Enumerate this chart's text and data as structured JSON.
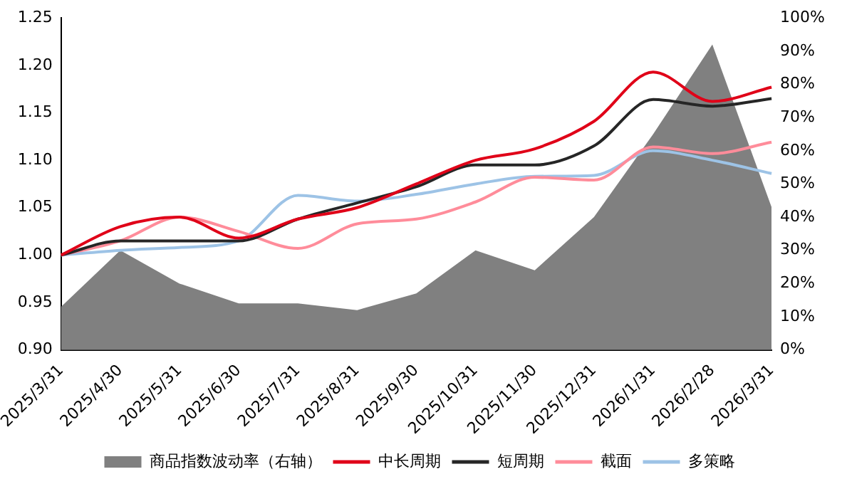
{
  "chart_data": {
    "type": "line",
    "categories": [
      "2025/3/31",
      "2025/4/30",
      "2025/5/31",
      "2025/6/30",
      "2025/7/31",
      "2025/8/31",
      "2025/9/30",
      "2025/10/31",
      "2025/11/30",
      "2025/12/31",
      "2026/1/31",
      "2026/2/28",
      "2026/3/31"
    ],
    "series": [
      {
        "name": "商品指数波动率（右轴）",
        "type": "area",
        "axis": "y2",
        "color": "#808080",
        "values": [
          13,
          30,
          20,
          14,
          14,
          12,
          17,
          30,
          24,
          40,
          65,
          92,
          43
        ]
      },
      {
        "name": "中长周期",
        "color": "#e00018",
        "values": [
          1.0,
          1.03,
          1.04,
          1.018,
          1.038,
          1.05,
          1.075,
          1.1,
          1.112,
          1.141,
          1.193,
          1.162,
          1.177
        ]
      },
      {
        "name": "短周期",
        "color": "#262626",
        "values": [
          1.0,
          1.015,
          1.015,
          1.015,
          1.038,
          1.055,
          1.072,
          1.095,
          1.095,
          1.115,
          1.164,
          1.157,
          1.165
        ]
      },
      {
        "name": "截面",
        "color": "#ff8c9a",
        "values": [
          1.0,
          1.015,
          1.04,
          1.025,
          1.007,
          1.033,
          1.038,
          1.056,
          1.082,
          1.079,
          1.114,
          1.107,
          1.119
        ]
      },
      {
        "name": "多策略",
        "color": "#9dc3e6",
        "values": [
          1.0,
          1.005,
          1.008,
          1.015,
          1.063,
          1.057,
          1.064,
          1.075,
          1.083,
          1.084,
          1.11,
          1.1,
          1.086
        ]
      }
    ],
    "ylim": [
      0.9,
      1.25
    ],
    "yticks": [
      {
        "value": 0.9,
        "label": "0.90"
      },
      {
        "value": 0.95,
        "label": "0.95"
      },
      {
        "value": 1,
        "label": "1.00"
      },
      {
        "value": 1.05,
        "label": "1.05"
      },
      {
        "value": 1.1,
        "label": "1.10"
      },
      {
        "value": 1.15,
        "label": "1.15"
      },
      {
        "value": 1.2,
        "label": "1.20"
      },
      {
        "value": 1.25,
        "label": "1.25"
      }
    ],
    "y2lim": [
      0,
      100
    ],
    "y2ticks": [
      {
        "value": 0,
        "label": "0%"
      },
      {
        "value": 10,
        "label": "10%"
      },
      {
        "value": 20,
        "label": "20%"
      },
      {
        "value": 30,
        "label": "30%"
      },
      {
        "value": 40,
        "label": "40%"
      },
      {
        "value": 50,
        "label": "50%"
      },
      {
        "value": 60,
        "label": "60%"
      },
      {
        "value": 70,
        "label": "70%"
      },
      {
        "value": 80,
        "label": "80%"
      },
      {
        "value": 90,
        "label": "90%"
      },
      {
        "value": 100,
        "label": "100%"
      }
    ],
    "grid": false,
    "legend": "bottom",
    "marker": "none",
    "line_style": "solid"
  }
}
